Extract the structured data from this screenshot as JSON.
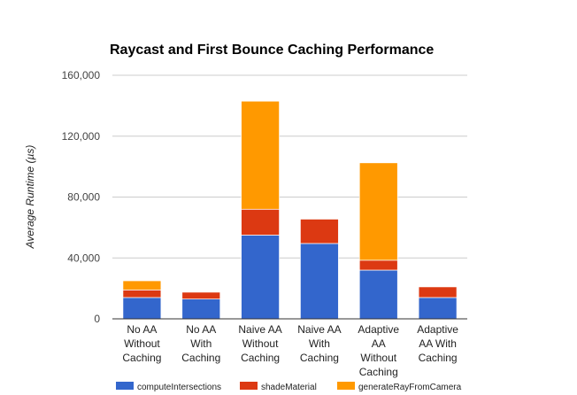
{
  "chart_data": {
    "type": "bar",
    "stacked": true,
    "title": "Raycast and First Bounce Caching Performance",
    "xlabel": "",
    "ylabel": "Average Runtime (µs)",
    "ylim": [
      0,
      160000
    ],
    "yticks": [
      0,
      40000,
      80000,
      120000,
      160000
    ],
    "ytick_labels": [
      "0",
      "40,000",
      "80,000",
      "120,000",
      "160,000"
    ],
    "grid": true,
    "legend_position": "bottom",
    "categories": [
      [
        "No AA",
        "Without",
        "Caching"
      ],
      [
        "No AA",
        "With",
        "Caching"
      ],
      [
        "Naive AA",
        "Without",
        "Caching"
      ],
      [
        "Naive AA",
        "With",
        "Caching"
      ],
      [
        "Adaptive",
        "AA",
        "Without",
        "Caching"
      ],
      [
        "Adaptive",
        "AA With",
        "Caching"
      ]
    ],
    "series": [
      {
        "name": "computeIntersections",
        "color": "#3366cc",
        "values": [
          14000,
          13000,
          55000,
          49500,
          32000,
          14000
        ]
      },
      {
        "name": "shadeMaterial",
        "color": "#dc3912",
        "values": [
          5000,
          4500,
          17000,
          16000,
          6500,
          7000
        ]
      },
      {
        "name": "generateRayFromCamera",
        "color": "#ff9900",
        "values": [
          6000,
          0,
          71000,
          0,
          64000,
          0
        ]
      }
    ]
  }
}
